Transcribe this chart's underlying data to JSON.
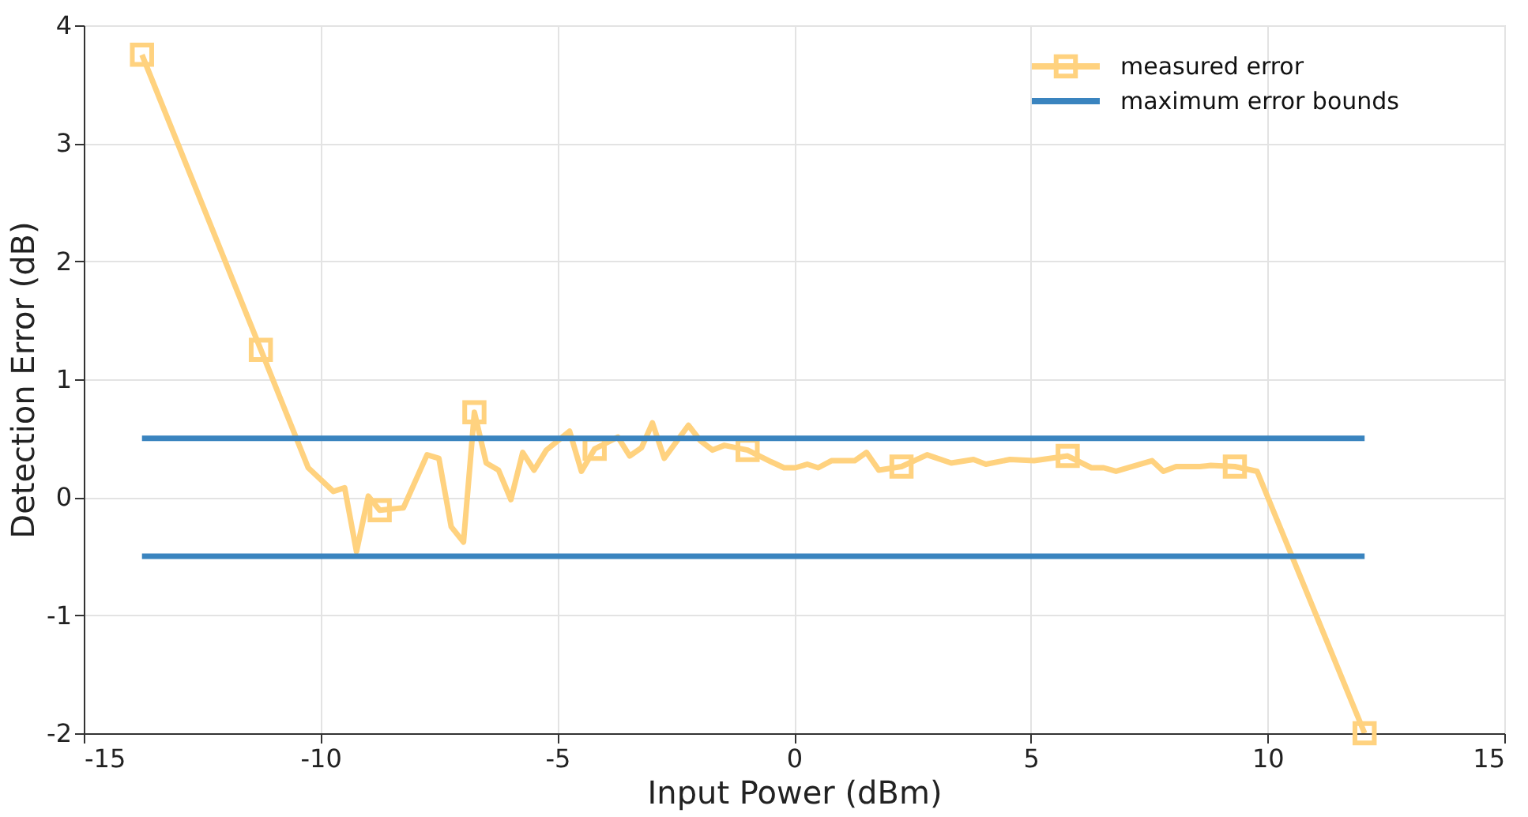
{
  "chart_data": {
    "type": "line",
    "xlabel": "Input Power (dBm)",
    "ylabel": "Detection Error (dB)",
    "xlim": [
      -15,
      15
    ],
    "xticks": [
      -15,
      -10,
      -5,
      0,
      5,
      10,
      15
    ],
    "ylim": [
      -2,
      4
    ],
    "yticks": [
      -2,
      -1,
      0,
      1,
      2,
      3,
      4
    ],
    "grid": true,
    "legend": "top right",
    "line_style": "solid",
    "series": [
      {
        "name": "measured error",
        "color": "#ffd27f",
        "x": [
          -13.77,
          -11.26,
          -10.26,
          -9.73,
          -9.49,
          -9.24,
          -8.99,
          -8.75,
          -8.25,
          -7.75,
          -7.5,
          -7.24,
          -6.98,
          -6.75,
          -6.5,
          -6.24,
          -5.98,
          -5.73,
          -5.49,
          -5.23,
          -4.74,
          -4.49,
          -4.21,
          -3.72,
          -3.47,
          -3.22,
          -2.99,
          -2.74,
          -2.23,
          -1.98,
          -1.72,
          -1.47,
          -0.98,
          -0.48,
          -0.21,
          0.03,
          0.28,
          0.51,
          0.79,
          1.28,
          1.53,
          1.79,
          2.27,
          2.81,
          3.32,
          3.79,
          4.05,
          4.56,
          5.07,
          5.78,
          6.28,
          6.54,
          6.8,
          7.56,
          7.8,
          8.07,
          8.57,
          8.8,
          9.31,
          9.78,
          12.05
        ],
        "values": [
          3.75,
          1.25,
          0.25,
          0.05,
          0.08,
          -0.46,
          0.01,
          -0.11,
          -0.09,
          0.36,
          0.33,
          -0.25,
          -0.38,
          0.72,
          0.29,
          0.23,
          -0.02,
          0.38,
          0.23,
          0.4,
          0.56,
          0.22,
          0.41,
          0.51,
          0.35,
          0.42,
          0.63,
          0.33,
          0.61,
          0.48,
          0.4,
          0.44,
          0.4,
          0.3,
          0.25,
          0.25,
          0.28,
          0.25,
          0.31,
          0.31,
          0.38,
          0.23,
          0.26,
          0.36,
          0.29,
          0.32,
          0.28,
          0.32,
          0.31,
          0.35,
          0.25,
          0.25,
          0.22,
          0.31,
          0.22,
          0.26,
          0.26,
          0.27,
          0.26,
          0.22,
          -2.0
        ]
      },
      {
        "color": "#ffd27f",
        "type": "scatter",
        "marker": "square",
        "x": [
          -13.77,
          -11.26,
          -8.75,
          -6.75,
          -4.21,
          -0.98,
          2.27,
          5.78,
          9.31,
          12.05
        ],
        "values": [
          3.75,
          1.25,
          -0.11,
          0.72,
          0.41,
          0.4,
          0.26,
          0.35,
          0.26,
          -2.0
        ]
      },
      {
        "name": "maximum error bounds",
        "color": "#3a84bf",
        "x": [
          -13.77,
          12.05
        ],
        "values": [
          0.5,
          0.5
        ]
      },
      {
        "color": "#3a84bf",
        "x": [
          -13.77,
          12.05
        ],
        "values": [
          -0.5,
          -0.5
        ]
      }
    ]
  }
}
